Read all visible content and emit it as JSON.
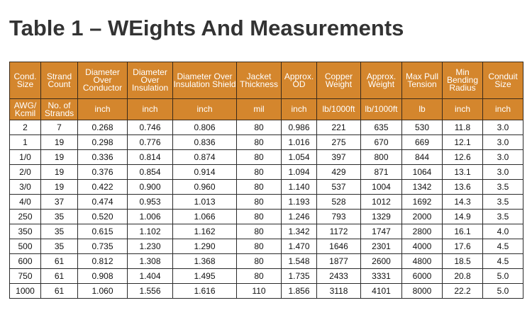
{
  "title": "Table 1 – WEights And Measurements",
  "header": {
    "labels": [
      "Cond. Size",
      "Strand Count",
      "Diameter Over Conductor",
      "Diameter Over Insulation",
      "Diameter Over Insulation Shield",
      "Jacket Thickness",
      "Approx. OD",
      "Copper Weight",
      "Approx. Weight",
      "Max Pull Tension",
      "Min Bending Radius",
      "Conduit Size"
    ],
    "units": [
      "AWG/ Kcmil",
      "No. of Strands",
      "inch",
      "inch",
      "inch",
      "mil",
      "inch",
      "lb/1000ft",
      "lb/1000ft",
      "lb",
      "inch",
      "inch"
    ]
  },
  "colors": {
    "header_bg": "#d4862d",
    "header_text": "#ffffff",
    "title": "#333333"
  },
  "rows": [
    [
      "2",
      "7",
      "0.268",
      "0.746",
      "0.806",
      "80",
      "0.986",
      "221",
      "635",
      "530",
      "11.8",
      "3.0"
    ],
    [
      "1",
      "19",
      "0.298",
      "0.776",
      "0.836",
      "80",
      "1.016",
      "275",
      "670",
      "669",
      "12.1",
      "3.0"
    ],
    [
      "1/0",
      "19",
      "0.336",
      "0.814",
      "0.874",
      "80",
      "1.054",
      "397",
      "800",
      "844",
      "12.6",
      "3.0"
    ],
    [
      "2/0",
      "19",
      "0.376",
      "0.854",
      "0.914",
      "80",
      "1.094",
      "429",
      "871",
      "1064",
      "13.1",
      "3.0"
    ],
    [
      "3/0",
      "19",
      "0.422",
      "0.900",
      "0.960",
      "80",
      "1.140",
      "537",
      "1004",
      "1342",
      "13.6",
      "3.5"
    ],
    [
      "4/0",
      "37",
      "0.474",
      "0.953",
      "1.013",
      "80",
      "1.193",
      "528",
      "1012",
      "1692",
      "14.3",
      "3.5"
    ],
    [
      "250",
      "35",
      "0.520",
      "1.006",
      "1.066",
      "80",
      "1.246",
      "793",
      "1329",
      "2000",
      "14.9",
      "3.5"
    ],
    [
      "350",
      "35",
      "0.615",
      "1.102",
      "1.162",
      "80",
      "1.342",
      "1172",
      "1747",
      "2800",
      "16.1",
      "4.0"
    ],
    [
      "500",
      "35",
      "0.735",
      "1.230",
      "1.290",
      "80",
      "1.470",
      "1646",
      "2301",
      "4000",
      "17.6",
      "4.5"
    ],
    [
      "600",
      "61",
      "0.812",
      "1.308",
      "1.368",
      "80",
      "1.548",
      "1877",
      "2600",
      "4800",
      "18.5",
      "4.5"
    ],
    [
      "750",
      "61",
      "0.908",
      "1.404",
      "1.495",
      "80",
      "1.735",
      "2433",
      "3331",
      "6000",
      "20.8",
      "5.0"
    ],
    [
      "1000",
      "61",
      "1.060",
      "1.556",
      "1.616",
      "110",
      "1.856",
      "3118",
      "4101",
      "8000",
      "22.2",
      "5.0"
    ]
  ]
}
